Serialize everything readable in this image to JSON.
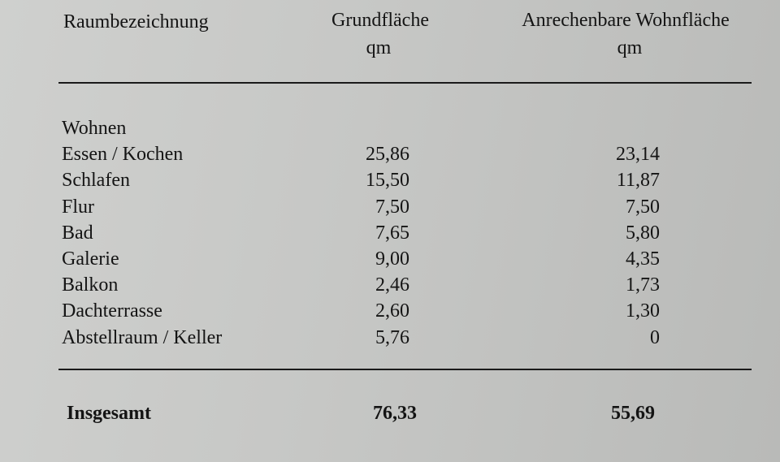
{
  "table": {
    "header": {
      "room": "Raumbezeichnung",
      "area": "Grundfläche",
      "area_unit": "qm",
      "living": "Anrechenbare Wohnfläche",
      "living_unit": "qm"
    },
    "rows": [
      {
        "name": "Wohnen"
      },
      {
        "name": "Essen / Kochen",
        "area": "25,86",
        "living": "23,14"
      },
      {
        "name": "Schlafen",
        "area": "15,50",
        "living": "11,87"
      },
      {
        "name": "Flur",
        "area": "7,50",
        "living": "7,50"
      },
      {
        "name": "Bad",
        "area": "7,65",
        "living": "5,80"
      },
      {
        "name": "Galerie",
        "area": "9,00",
        "living": "4,35"
      },
      {
        "name": "Balkon",
        "area": "2,46",
        "living": "1,73"
      },
      {
        "name": "Dachterrasse",
        "area": "2,60",
        "living": "1,30"
      },
      {
        "name": "Abstellraum / Keller",
        "area": "5,76",
        "living": "0"
      }
    ],
    "total": {
      "name": "Insgesamt",
      "area": "76,33",
      "living": "55,69"
    }
  }
}
